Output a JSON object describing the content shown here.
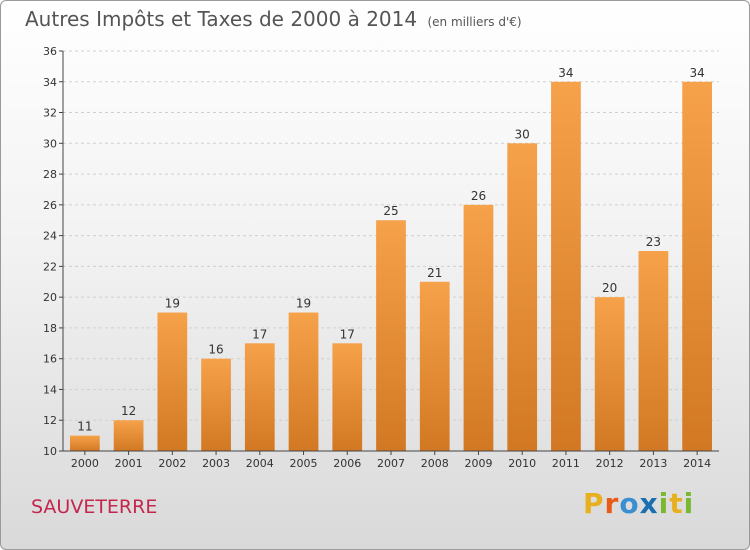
{
  "title": "Autres Impôts et Taxes de 2000 à 2014",
  "unit_note": "(en milliers d'€)",
  "commune": "SAUVETERRE",
  "logo": {
    "letters": [
      "P",
      "r",
      "o",
      "x",
      "i",
      "t",
      "i"
    ],
    "colors": [
      "#e8b020",
      "#e85a1a",
      "#3a8fd0",
      "#1a6fb0",
      "#7ab830",
      "#e8b020",
      "#7ab830"
    ]
  },
  "colors": {
    "bar_light": "#f6a24a",
    "bar_dark": "#d27823",
    "grid": "#d0d0d0",
    "axis": "#444444"
  },
  "chart_data": {
    "type": "bar",
    "categories": [
      "2000",
      "2001",
      "2002",
      "2003",
      "2004",
      "2005",
      "2006",
      "2007",
      "2008",
      "2009",
      "2010",
      "2011",
      "2012",
      "2013",
      "2014"
    ],
    "values": [
      11,
      12,
      19,
      16,
      17,
      19,
      17,
      25,
      21,
      26,
      30,
      34,
      20,
      23,
      34
    ],
    "ylim": [
      10,
      36
    ],
    "yticks": [
      10,
      12,
      14,
      16,
      18,
      20,
      22,
      24,
      26,
      28,
      30,
      32,
      34,
      36
    ],
    "grid": true
  }
}
